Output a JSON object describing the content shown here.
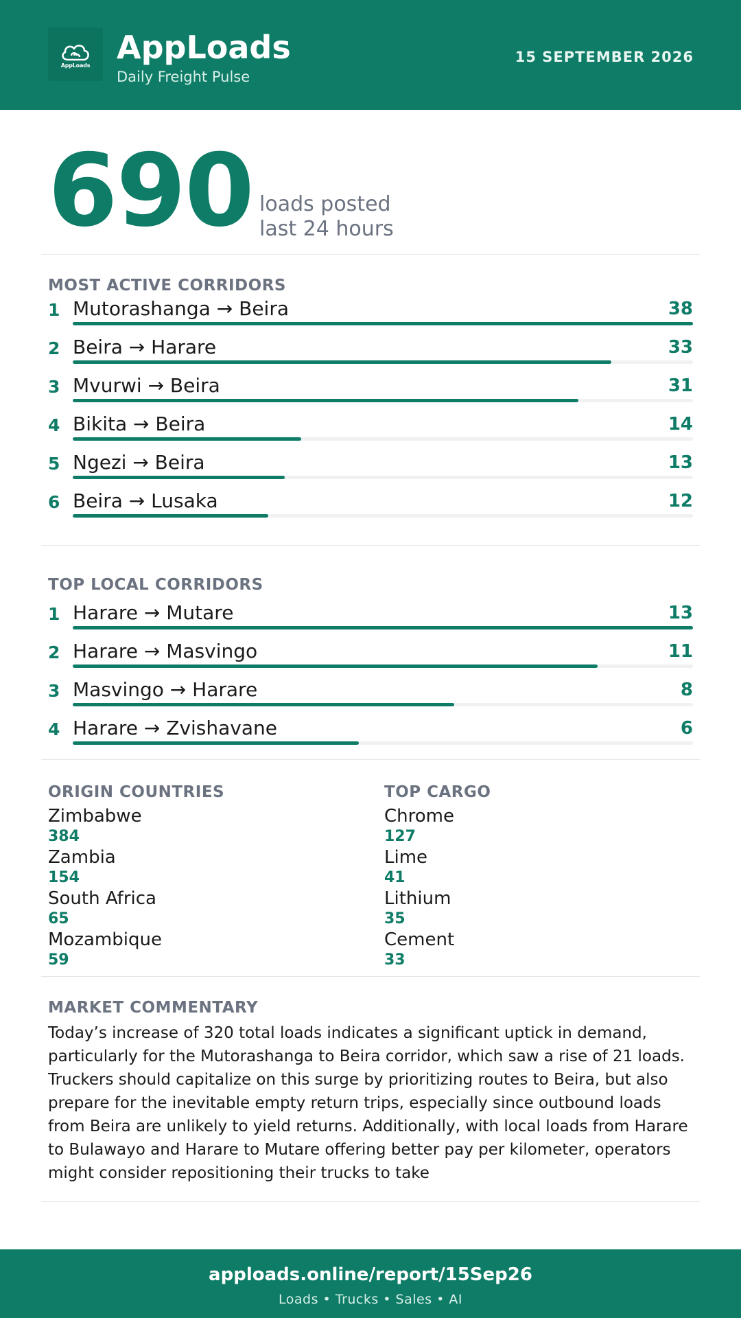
{
  "header": {
    "brand": "AppLoads",
    "tagline": "Daily Freight Pulse",
    "logo_text": "AppLoads",
    "date": "15 SEPTEMBER 2026"
  },
  "hero": {
    "value": "690",
    "label_line1": "loads posted",
    "label_line2": "last 24 hours"
  },
  "most_active": {
    "title": "MOST ACTIVE CORRIDORS",
    "max": 38,
    "items": [
      {
        "rank": "1",
        "route": "Mutorashanga → Beira",
        "count": 38
      },
      {
        "rank": "2",
        "route": "Beira → Harare",
        "count": 33
      },
      {
        "rank": "3",
        "route": "Mvurwi → Beira",
        "count": 31
      },
      {
        "rank": "4",
        "route": "Bikita → Beira",
        "count": 14
      },
      {
        "rank": "5",
        "route": "Ngezi → Beira",
        "count": 13
      },
      {
        "rank": "6",
        "route": "Beira → Lusaka",
        "count": 12
      }
    ]
  },
  "top_local": {
    "title": "TOP LOCAL CORRIDORS",
    "max": 13,
    "items": [
      {
        "rank": "1",
        "route": "Harare → Mutare",
        "count": 13
      },
      {
        "rank": "2",
        "route": "Harare → Masvingo",
        "count": 11
      },
      {
        "rank": "3",
        "route": "Masvingo → Harare",
        "count": 8
      },
      {
        "rank": "4",
        "route": "Harare → Zvishavane",
        "count": 6
      }
    ]
  },
  "origin_countries": {
    "title": "ORIGIN COUNTRIES",
    "items": [
      {
        "name": "Zimbabwe",
        "value": "384"
      },
      {
        "name": "Zambia",
        "value": "154"
      },
      {
        "name": "South Africa",
        "value": "65"
      },
      {
        "name": "Mozambique",
        "value": "59"
      }
    ]
  },
  "top_cargo": {
    "title": "TOP CARGO",
    "items": [
      {
        "name": "Chrome",
        "value": "127"
      },
      {
        "name": "Lime",
        "value": "41"
      },
      {
        "name": "Lithium",
        "value": "35"
      },
      {
        "name": "Cement",
        "value": "33"
      }
    ]
  },
  "commentary": {
    "title": "MARKET COMMENTARY",
    "text": "Today’s increase of 320 total loads indicates a significant uptick in demand, particularly for the Mutorashanga to Beira corridor, which saw a rise of 21 loads. Truckers should capitalize on this surge by prioritizing routes to Beira, but also prepare for the inevitable empty return trips, especially since outbound loads from Beira are unlikely to yield returns. Additionally, with local loads from Harare to Bulawayo and Harare to Mutare offering better pay per kilometer, operators might consider repositioning their trucks to take"
  },
  "footer": {
    "url": "apploads.online/report/15Sep26",
    "tagline": "Loads • Trucks • Sales • AI"
  },
  "colors": {
    "brand": "#0e7c66",
    "muted": "#6b7280",
    "track": "#f0f1f3"
  }
}
